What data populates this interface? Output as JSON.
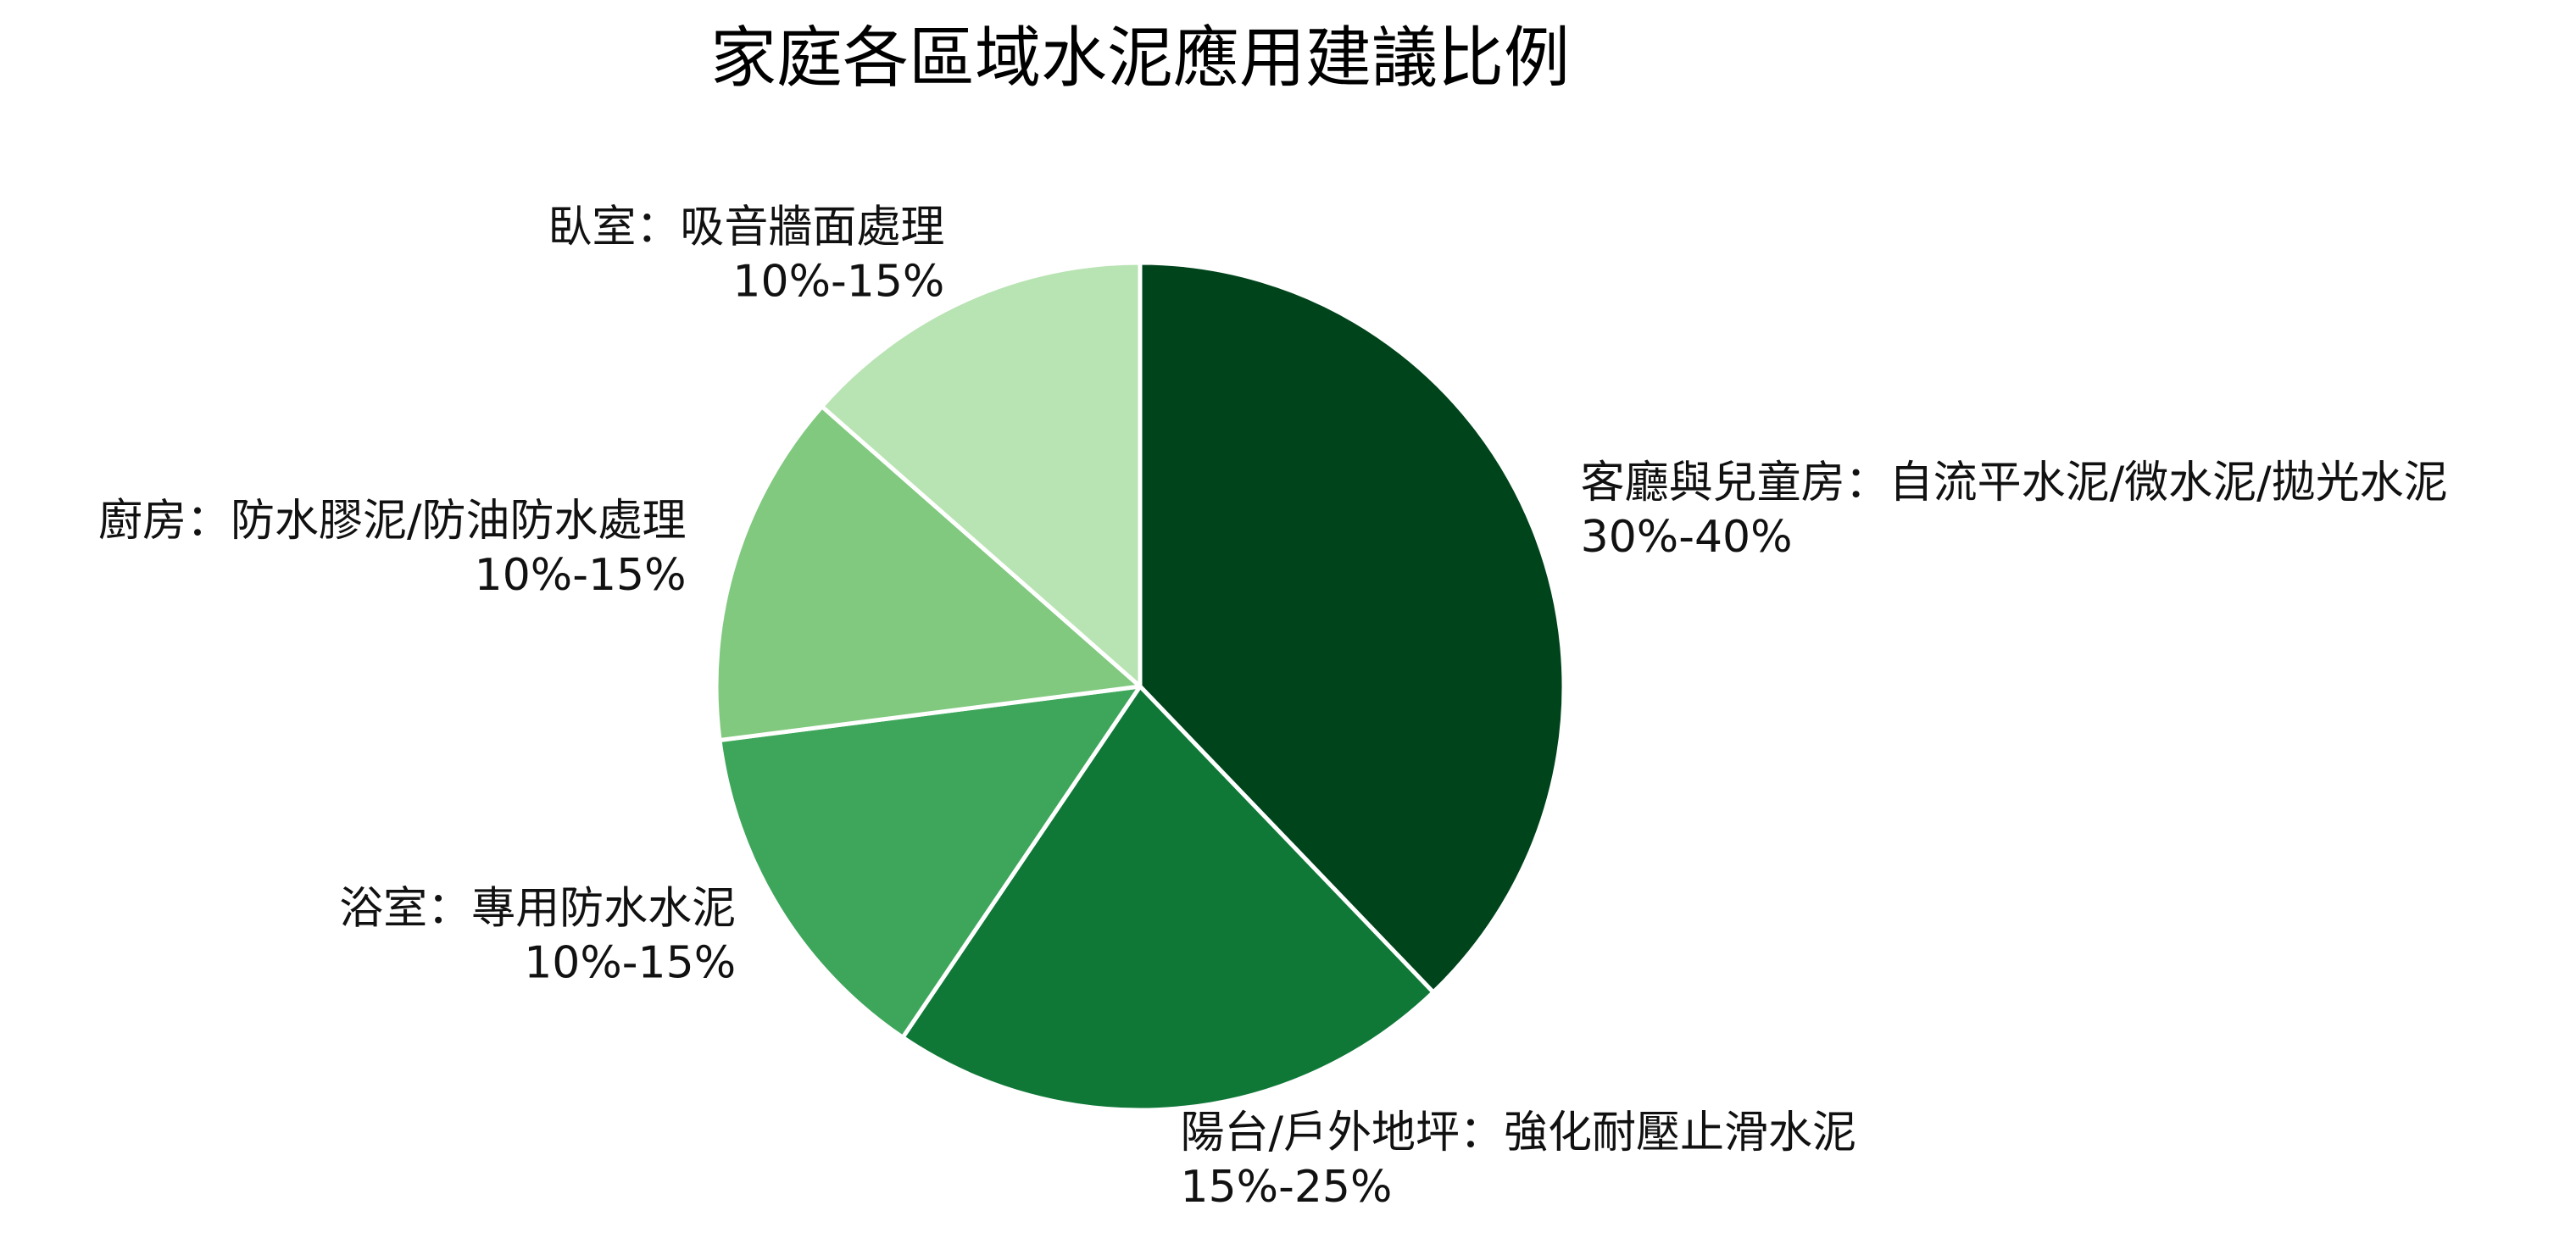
{
  "chart_data": {
    "type": "pie",
    "title": "家庭各區域水泥應用建議比例",
    "start_angle_deg": 90,
    "direction": "clockwise",
    "slices": [
      {
        "name": "客廳與兒童房：自流平水泥/微水泥/拋光水泥",
        "range": "30%-40%",
        "value": 35,
        "color": "#00441b"
      },
      {
        "name": "陽台/戶外地坪：強化耐壓止滑水泥",
        "range": "15%-25%",
        "value": 20,
        "color": "#0f7837"
      },
      {
        "name": "浴室：專用防水水泥",
        "range": "10%-15%",
        "value": 12.5,
        "color": "#3ea65b"
      },
      {
        "name": "廚房：防水膠泥/防油防水處理",
        "range": "10%-15%",
        "value": 12.5,
        "color": "#80c97f"
      },
      {
        "name": "臥室：吸音牆面處理",
        "range": "10%-15%",
        "value": 12.5,
        "color": "#b8e3b2"
      }
    ],
    "edge_color": "#ffffff"
  }
}
